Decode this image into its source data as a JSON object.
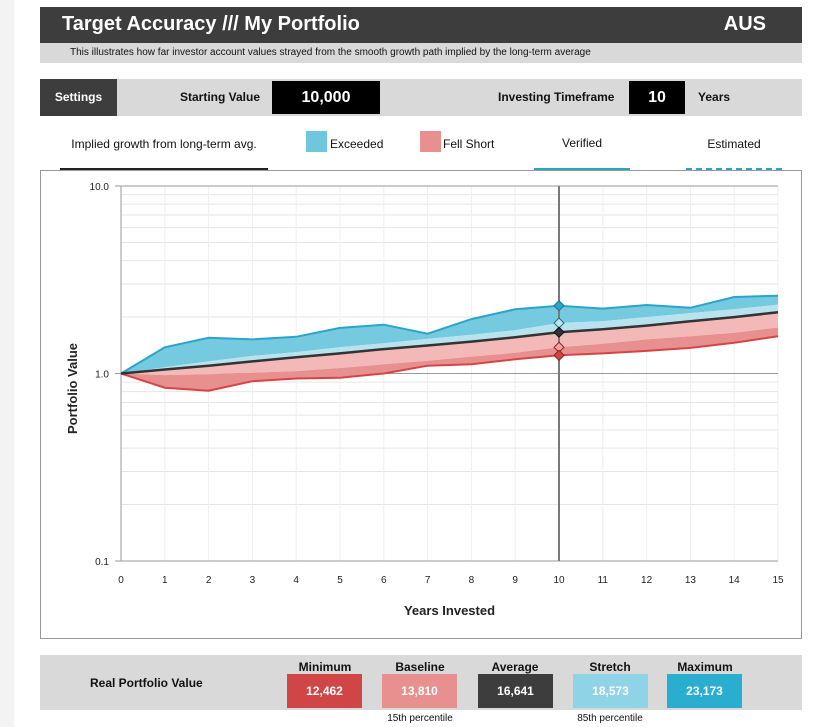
{
  "header": {
    "title": "Target Accuracy /// My Portfolio",
    "region": "AUS"
  },
  "subtitle": "This illustrates how far investor account values strayed from the smooth growth path implied by the long-term average",
  "settings": {
    "button_label": "Settings",
    "starting_value_label": "Starting Value",
    "starting_value": "10,000",
    "timeframe_label": "Investing Timeframe",
    "timeframe_value": "10",
    "timeframe_unit": "Years"
  },
  "legend": {
    "implied": "Implied growth from long-term avg.",
    "exceeded": "Exceeded",
    "fell_short": "Fell Short",
    "verified": "Verified",
    "estimated": "Estimated"
  },
  "colors": {
    "exceeded": "#6fc7dd",
    "exceeded_line": "#2aa5c9",
    "fell_short": "#e88f8f",
    "fell_short_line": "#d64545",
    "implied_line": "#333333",
    "minimum_box": "#d04545",
    "baseline_box": "#e88f8f",
    "average_box": "#3d3d3d",
    "stretch_box": "#8fd4e6",
    "maximum_box": "#2aaed0"
  },
  "chart_data": {
    "type": "area",
    "xlabel": "Years Invested",
    "ylabel": "Portfolio Value",
    "log_scale_y": true,
    "x": [
      0,
      1,
      2,
      3,
      4,
      5,
      6,
      7,
      8,
      9,
      10,
      11,
      12,
      13,
      14,
      15
    ],
    "x_ticks": [
      "0",
      "1",
      "2",
      "3",
      "4",
      "5",
      "6",
      "7",
      "8",
      "9",
      "10",
      "11",
      "12",
      "13",
      "14",
      "15"
    ],
    "y_ticks": [
      "0.1",
      "1.0",
      "10.0"
    ],
    "ylim": [
      0.1,
      10
    ],
    "xlim": [
      0,
      15
    ],
    "marker_year": 10,
    "series": [
      {
        "key": "maximum",
        "values": [
          1.0,
          1.38,
          1.55,
          1.52,
          1.57,
          1.75,
          1.82,
          1.63,
          1.95,
          2.2,
          2.3,
          2.22,
          2.32,
          2.24,
          2.56,
          2.6
        ]
      },
      {
        "key": "stretch",
        "values": [
          1.0,
          1.08,
          1.16,
          1.24,
          1.3,
          1.38,
          1.45,
          1.53,
          1.61,
          1.7,
          1.86,
          1.9,
          2.0,
          2.1,
          2.2,
          2.33
        ]
      },
      {
        "key": "average",
        "values": [
          1.0,
          1.05,
          1.1,
          1.16,
          1.22,
          1.28,
          1.35,
          1.41,
          1.48,
          1.56,
          1.66,
          1.72,
          1.8,
          1.9,
          2.0,
          2.12
        ]
      },
      {
        "key": "baseline",
        "values": [
          1.0,
          0.98,
          0.99,
          1.01,
          1.03,
          1.07,
          1.12,
          1.17,
          1.23,
          1.29,
          1.38,
          1.44,
          1.52,
          1.58,
          1.65,
          1.76
        ]
      },
      {
        "key": "minimum",
        "values": [
          1.0,
          0.84,
          0.81,
          0.91,
          0.94,
          0.95,
          1.0,
          1.1,
          1.12,
          1.19,
          1.25,
          1.28,
          1.32,
          1.37,
          1.46,
          1.58
        ]
      }
    ]
  },
  "summary": {
    "label": "Real Portfolio Value",
    "minimum_label": "Minimum",
    "minimum": "12,462",
    "baseline_label": "Baseline",
    "baseline": "13,810",
    "average_label": "Average",
    "average": "16,641",
    "stretch_label": "Stretch",
    "stretch": "18,573",
    "maximum_label": "Maximum",
    "maximum": "23,173",
    "baseline_note": "15th percentile",
    "stretch_note": "85th percentile"
  }
}
